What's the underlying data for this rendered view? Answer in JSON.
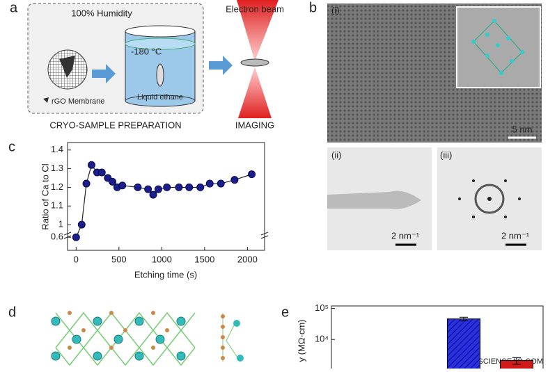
{
  "panels": {
    "a": {
      "label": "a",
      "humidity": "100% Humidity",
      "temperature": "-180 °C",
      "liquid": "Liquid ethane",
      "membrane": "rGO Membrane",
      "prep": "CRYO-SAMPLE PREPARATION",
      "beam": "Electron beam",
      "imaging": "IMAGING"
    },
    "b": {
      "label": "b",
      "i": "(i)",
      "ii": "(ii)",
      "iii": "(iii)",
      "scale_i": "5 nm",
      "scale_ii": "2 nm⁻¹",
      "scale_iii": "2 nm⁻¹"
    },
    "c": {
      "label": "c"
    },
    "d": {
      "label": "d"
    },
    "e": {
      "label": "e"
    }
  },
  "watermark": "SCIENCEAQ.COM",
  "chart_data": [
    {
      "type": "line",
      "xlabel": "Etching time (s)",
      "ylabel": "Ratio of Ca to Cl",
      "color": "#1a1f8c",
      "x": [
        0,
        65,
        120,
        180,
        245,
        300,
        370,
        425,
        480,
        540,
        720,
        840,
        900,
        960,
        1060,
        1200,
        1320,
        1450,
        1560,
        1690,
        1850,
        2050
      ],
      "values": [
        0.6,
        1.0,
        1.22,
        1.32,
        1.28,
        1.28,
        1.25,
        1.23,
        1.2,
        1.21,
        1.2,
        1.19,
        1.16,
        1.19,
        1.2,
        1.2,
        1.2,
        1.2,
        1.22,
        1.22,
        1.24,
        1.27
      ],
      "xlim": [
        -100,
        2200
      ],
      "xticks": [
        0,
        500,
        1000,
        1500,
        2000
      ],
      "ylim": [
        0.53,
        1.44
      ],
      "yticks": [
        0.6,
        1.0,
        1.1,
        1.2,
        1.3,
        1.4
      ],
      "axis_break": [
        0.61,
        0.95
      ]
    },
    {
      "type": "bar",
      "ylabel": "y (MΩ·cm)",
      "log_scale": true,
      "categories": [
        null,
        null,
        null,
        null
      ],
      "values": [
        null,
        null,
        46000,
        2100
      ],
      "errors": [
        null,
        null,
        6000,
        500
      ],
      "colors": [
        "#1a1fd0",
        "#1a1fd0",
        "#1a1fd0",
        "#d01a1a"
      ],
      "ylim": [
        900,
        120000
      ],
      "yticks": [
        {
          "value": 100000,
          "label": "10⁵"
        },
        {
          "value": 10000,
          "label": "10⁴"
        }
      ]
    }
  ]
}
